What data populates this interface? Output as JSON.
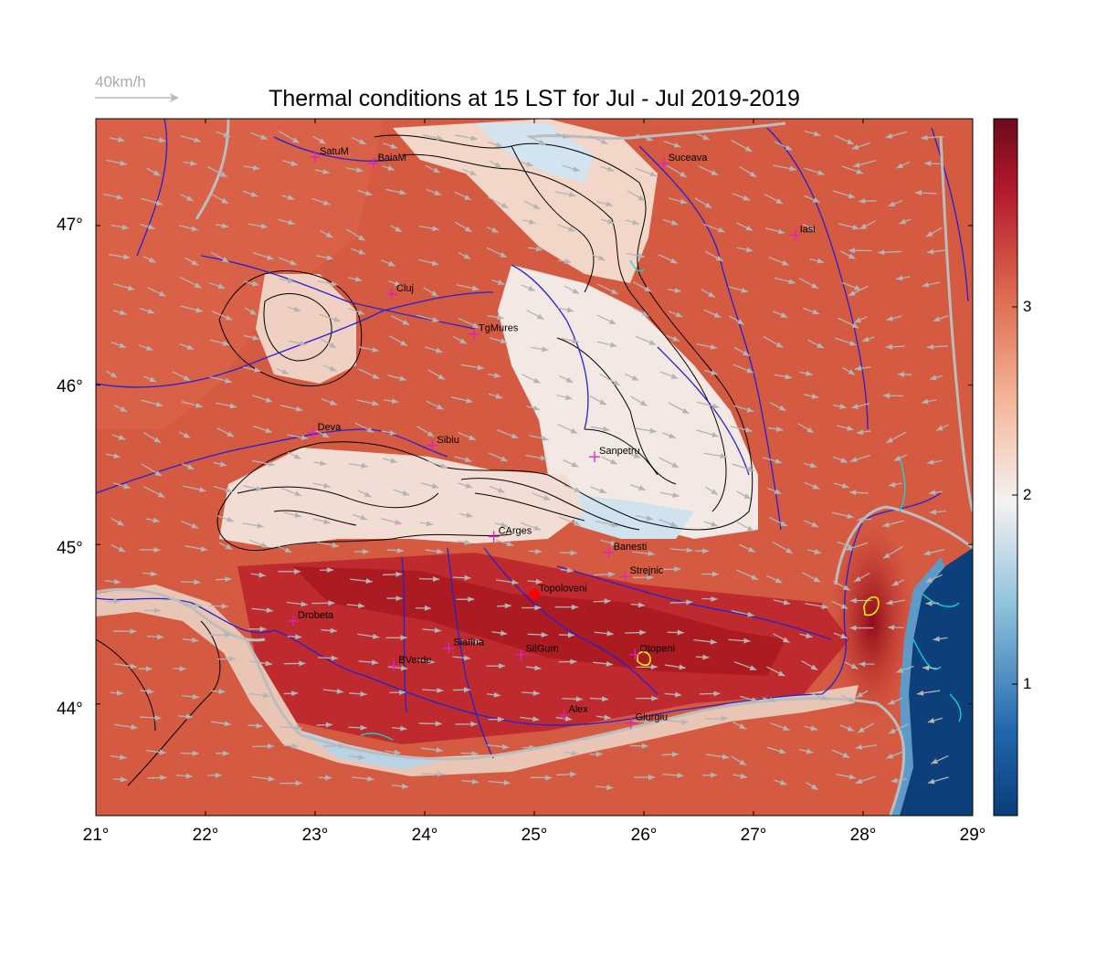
{
  "title": "Thermal conditions at 15 LST for Jul - Jul  2019-2019",
  "wind_legend": {
    "label": "40km/h",
    "color": "#aaaaaa"
  },
  "colors": {
    "hot_dark": "#9b0f1e",
    "hot": "#d6513e",
    "warm": "#e48a6d",
    "neutral": "#f4f1f0",
    "cool": "#a8cde3",
    "cold": "#0b3d78",
    "rivers": "#2020d0",
    "borders": "#b8b8b8",
    "contours": "#000000",
    "city_marker": "#e020c0",
    "wind_arrows": "#b4b4b4",
    "lakes": "#00e0e0",
    "highlight": "#ffff00",
    "station": "#ff0000"
  },
  "axes": {
    "lon_ticks": [
      "21°",
      "22°",
      "23°",
      "24°",
      "25°",
      "26°",
      "27°",
      "28°",
      "29°"
    ],
    "lat_ticks": [
      "47°",
      "46°",
      "45°",
      "44°"
    ]
  },
  "colorbar": {
    "ticks": [
      "3",
      "2",
      "1"
    ],
    "range": [
      0.3,
      3.8
    ],
    "colormap": "RdBu reversed"
  },
  "cities": [
    {
      "name": "SatuM",
      "lon": 23.0,
      "lat": 47.43
    },
    {
      "name": "BaiaM",
      "lon": 23.53,
      "lat": 47.39
    },
    {
      "name": "Suceava",
      "lon": 26.18,
      "lat": 47.39
    },
    {
      "name": "Iasi",
      "lon": 27.38,
      "lat": 46.94
    },
    {
      "name": "Cluj",
      "lon": 23.7,
      "lat": 46.57
    },
    {
      "name": "TgMures",
      "lon": 24.45,
      "lat": 46.32
    },
    {
      "name": "Deva",
      "lon": 22.98,
      "lat": 45.7
    },
    {
      "name": "Sibiu",
      "lon": 24.07,
      "lat": 45.62
    },
    {
      "name": "Sanpetru",
      "lon": 25.55,
      "lat": 45.55
    },
    {
      "name": "CArges",
      "lon": 24.63,
      "lat": 45.05
    },
    {
      "name": "Banesti",
      "lon": 25.68,
      "lat": 44.95
    },
    {
      "name": "Strejnic",
      "lon": 25.83,
      "lat": 44.8
    },
    {
      "name": "Topoloveni",
      "lon": 25.0,
      "lat": 44.69
    },
    {
      "name": "Drobeta",
      "lon": 22.8,
      "lat": 44.52
    },
    {
      "name": "Slatina",
      "lon": 24.22,
      "lat": 44.35
    },
    {
      "name": "SilGum",
      "lon": 24.88,
      "lat": 44.31
    },
    {
      "name": "Otopeni",
      "lon": 25.92,
      "lat": 44.31
    },
    {
      "name": "BVerde",
      "lon": 23.72,
      "lat": 44.24
    },
    {
      "name": "Alex",
      "lon": 25.27,
      "lat": 43.93
    },
    {
      "name": "Giurgiu",
      "lon": 25.88,
      "lat": 43.88
    }
  ],
  "station": {
    "name": "Topoloveni",
    "lon": 25.0,
    "lat": 44.69
  },
  "map_extent": {
    "lon": [
      21.0,
      29.0
    ],
    "lat": [
      43.3,
      47.67
    ]
  }
}
